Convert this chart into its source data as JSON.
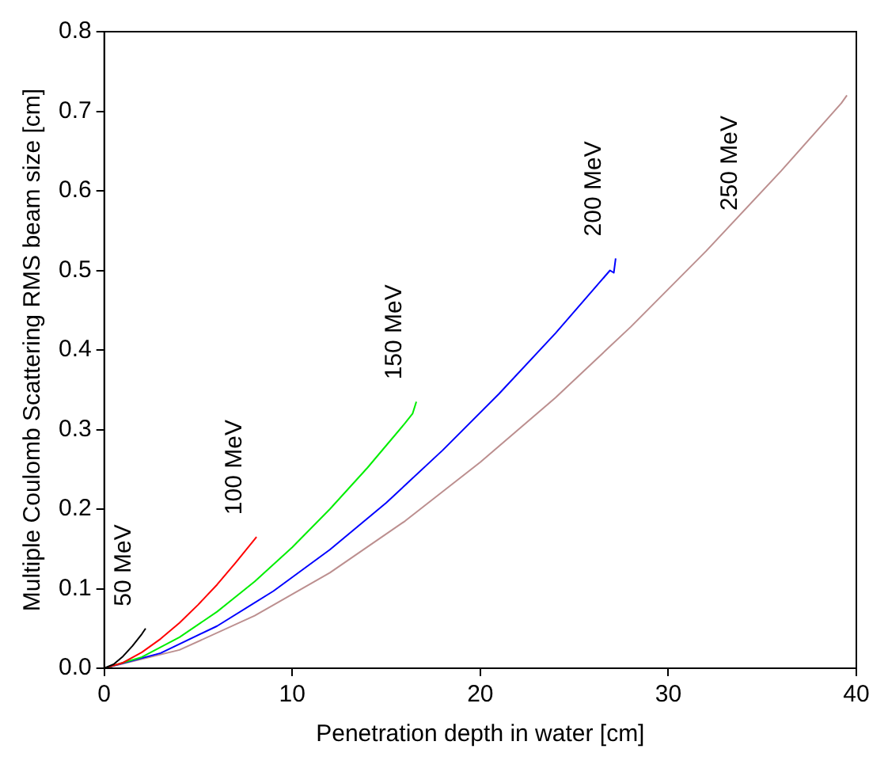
{
  "chart_data": {
    "type": "line",
    "xlabel": "Penetration depth in water [cm]",
    "ylabel": "Multiple Coulomb Scattering RMS beam size [cm]",
    "xlim": [
      0,
      40
    ],
    "xticks": [
      0,
      10,
      20,
      30,
      40
    ],
    "ylim": [
      0,
      0.8
    ],
    "yticks": [
      {
        "value": 0,
        "label": "0.0"
      },
      {
        "value": 0.1,
        "label": "0.1"
      },
      {
        "value": 0.2,
        "label": "0.2"
      },
      {
        "value": 0.3,
        "label": "0.3"
      },
      {
        "value": 0.4,
        "label": "0.4"
      },
      {
        "value": 0.5,
        "label": "0.5"
      },
      {
        "value": 0.6,
        "label": "0.6"
      },
      {
        "value": 0.7,
        "label": "0.7"
      },
      {
        "value": 0.8,
        "label": "0.8"
      }
    ],
    "grid": false,
    "legend": false,
    "marker": "none",
    "line_style": "solid",
    "series": [
      {
        "name": "50 MeV",
        "color": "#000000",
        "x": [
          0,
          0.5,
          1,
          1.5,
          2,
          2.2
        ],
        "values": [
          0,
          0.005,
          0.015,
          0.028,
          0.043,
          0.05
        ]
      },
      {
        "name": "100 MeV",
        "color": "#ff0000",
        "x": [
          0,
          1,
          2,
          3,
          4,
          5,
          6,
          7,
          8,
          8.1
        ],
        "values": [
          0,
          0.007,
          0.02,
          0.037,
          0.057,
          0.08,
          0.105,
          0.133,
          0.162,
          0.165
        ]
      },
      {
        "name": "150 MeV",
        "color": "#00ee00",
        "x": [
          0,
          2,
          4,
          6,
          8,
          10,
          12,
          14,
          16,
          16.4,
          16.6
        ],
        "values": [
          0,
          0.014,
          0.039,
          0.071,
          0.109,
          0.152,
          0.2,
          0.252,
          0.308,
          0.32,
          0.335
        ]
      },
      {
        "name": "200 MeV",
        "color": "#0000ff",
        "x": [
          0,
          3,
          6,
          9,
          12,
          15,
          18,
          21,
          24,
          26.9,
          27.1,
          27.2
        ],
        "values": [
          0,
          0.019,
          0.053,
          0.097,
          0.149,
          0.208,
          0.274,
          0.345,
          0.421,
          0.5,
          0.497,
          0.515
        ]
      },
      {
        "name": "250 MeV",
        "color": "#bc8f8f",
        "x": [
          0,
          4,
          8,
          12,
          16,
          20,
          24,
          28,
          32,
          36,
          39.2,
          39.5
        ],
        "values": [
          0,
          0.023,
          0.066,
          0.12,
          0.185,
          0.259,
          0.34,
          0.429,
          0.524,
          0.625,
          0.71,
          0.72
        ]
      }
    ]
  }
}
